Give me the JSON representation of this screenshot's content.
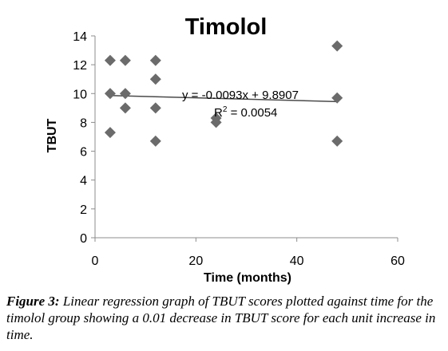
{
  "chart_data": {
    "type": "scatter",
    "title": "Timolol",
    "xlabel": "Time (months)",
    "ylabel": "TBUT",
    "xlim": [
      0,
      60
    ],
    "ylim": [
      0,
      14
    ],
    "xticks": [
      0,
      20,
      40,
      60
    ],
    "yticks": [
      0,
      2,
      4,
      6,
      8,
      10,
      12,
      14
    ],
    "grid": false,
    "legend": "none",
    "marker": "diamond",
    "marker_color": "#6b6b6b",
    "trendline_color": "#4a4a4a",
    "points": [
      {
        "x": 3,
        "y": 12.3
      },
      {
        "x": 3,
        "y": 10
      },
      {
        "x": 3,
        "y": 7.3
      },
      {
        "x": 6,
        "y": 12.3
      },
      {
        "x": 6,
        "y": 10
      },
      {
        "x": 6,
        "y": 9
      },
      {
        "x": 12,
        "y": 12.3
      },
      {
        "x": 12,
        "y": 11
      },
      {
        "x": 12,
        "y": 9
      },
      {
        "x": 12,
        "y": 6.7
      },
      {
        "x": 24,
        "y": 8.3
      },
      {
        "x": 24,
        "y": 8
      },
      {
        "x": 48,
        "y": 13.3
      },
      {
        "x": 48,
        "y": 9.7
      },
      {
        "x": 48,
        "y": 6.7
      }
    ],
    "trendline": {
      "slope": -0.0093,
      "intercept": 9.8907,
      "x_range": [
        3,
        48
      ]
    },
    "annotations": {
      "equation": "y = -0.0093x + 9.8907",
      "r_squared_prefix": "R",
      "r_squared_sup": "2",
      "r_squared_suffix": " = 0.0054"
    }
  },
  "caption": {
    "label": "Figure 3:",
    "text": " Linear regression graph of TBUT scores plotted against time for the timolol group showing a 0.01 decrease in TBUT score for each unit increase in time."
  }
}
